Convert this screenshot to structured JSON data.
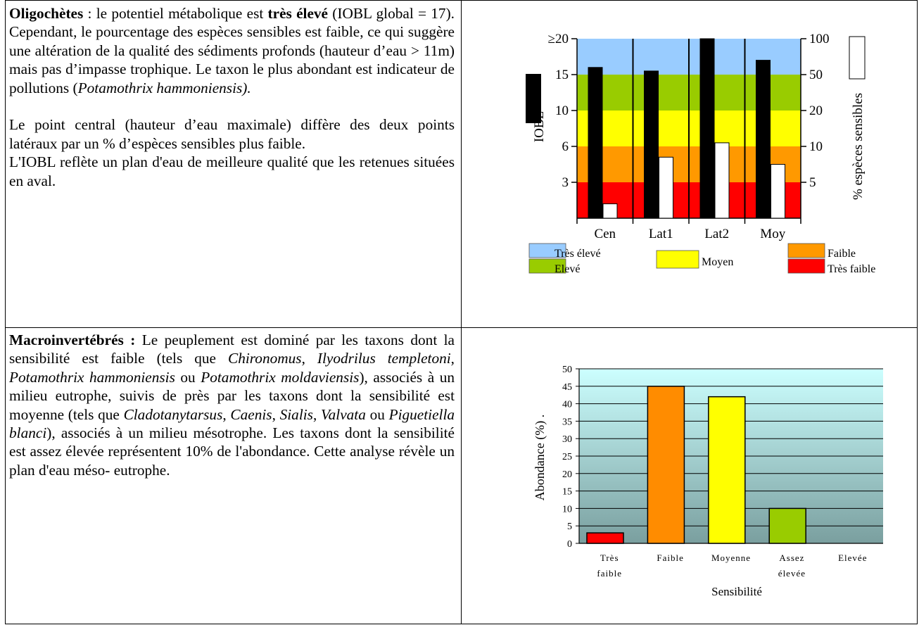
{
  "oligo": {
    "bold_label": "Oligochètes",
    "after_label": " : le potentiel métabolique est ",
    "bold_level": "très élevé",
    "text1": "(IOBL global = 17). Cependant, le pourcentage des espèces sensibles est faible, ce qui suggère une altération de la qualité des sédiments profonds (hauteur d’eau > 11m) mais pas d’impasse trophique. Le taxon le plus abondant est indicateur de pollutions (",
    "italic_taxon": "Potamothrix hammoniensis).",
    "para2": "Le point central (hauteur d’eau maximale) diffère des deux points latéraux par un % d’espèces sensibles plus faible.",
    "para3": "L'IOBL reflète un plan d'eau de meilleure qualité que les retenues situées en aval."
  },
  "macro": {
    "bold_label": "Macroinvertébrés :",
    "t1": " Le peuplement est dominé par les taxons dont la sensibilité est faible (tels que ",
    "i1": "Chironomus",
    "s1": ", ",
    "i2": "Ilyodrilus templetoni",
    "s2": ", ",
    "i3": "Potamothrix hammoniensis",
    "s3": " ou ",
    "i4": "Potamothrix moldaviensis",
    "t2": "), associés à un milieu eutrophe, suivis de près par les taxons dont la sensibilité est moyenne (tels que ",
    "i5": "Cladotanytarsus",
    "s5": ", ",
    "i6": "Caenis",
    "s6": ", ",
    "i7": "Sialis",
    "s7": ", ",
    "i8": "Valvata",
    "s8": " ou ",
    "i9": "Piguetiella blanci",
    "t3": "), associés à un milieu mésotrophe. Les taxons dont la sensibilité est assez élevée représentent 10% de l'abondance. Cette analyse révèle un plan d'eau méso- eutrophe."
  },
  "chart_data": [
    {
      "type": "bar",
      "categories": [
        "Cen",
        "Lat1",
        "Lat2",
        "Moy"
      ],
      "series": [
        {
          "name": "IOBL",
          "axis": "left",
          "color": "#000000",
          "values": [
            16,
            15.5,
            20,
            17
          ]
        },
        {
          "name": "% espèces sensibles",
          "axis": "right",
          "color": "#ffffff",
          "values": [
            2,
            8.5,
            11,
            7.5
          ]
        }
      ],
      "ylabel": "IOBL",
      "y2label": "% espèces sensibles",
      "left_ticks": [
        "3",
        "6",
        "10",
        "15",
        "≥20"
      ],
      "right_ticks": [
        "5",
        "10",
        "20",
        "50",
        "100"
      ],
      "bands": [
        {
          "label": "Très élevé",
          "color": "#99ccff"
        },
        {
          "label": "Elevé",
          "color": "#99cc00"
        },
        {
          "label": "Moyen",
          "color": "#ffff00"
        },
        {
          "label": "Faible",
          "color": "#ff9900"
        },
        {
          "label": "Très faible",
          "color": "#ff0000"
        }
      ],
      "legend": [
        "Très élevé",
        "Elevé",
        "Moyen",
        "Faible",
        "Très faible"
      ]
    },
    {
      "type": "bar",
      "categories": [
        "Très faible",
        "Faible",
        "Moyenne",
        "Assez élevée",
        "Elevée"
      ],
      "category_lines": [
        [
          "Très",
          "faible"
        ],
        [
          "Faible"
        ],
        [
          "Moyenne"
        ],
        [
          "Assez",
          "élevée"
        ],
        [
          "Elevée"
        ]
      ],
      "values": [
        3,
        45,
        42,
        10,
        0
      ],
      "colors": [
        "#ff0000",
        "#ff8c00",
        "#ffff00",
        "#99cc00",
        "#99cc00"
      ],
      "xlabel": "Sensibilité",
      "ylabel": "Abondance (%) .",
      "ylim": [
        0,
        50
      ],
      "yticks": [
        0,
        5,
        10,
        15,
        20,
        25,
        30,
        35,
        40,
        45,
        50
      ],
      "grid": true
    }
  ]
}
